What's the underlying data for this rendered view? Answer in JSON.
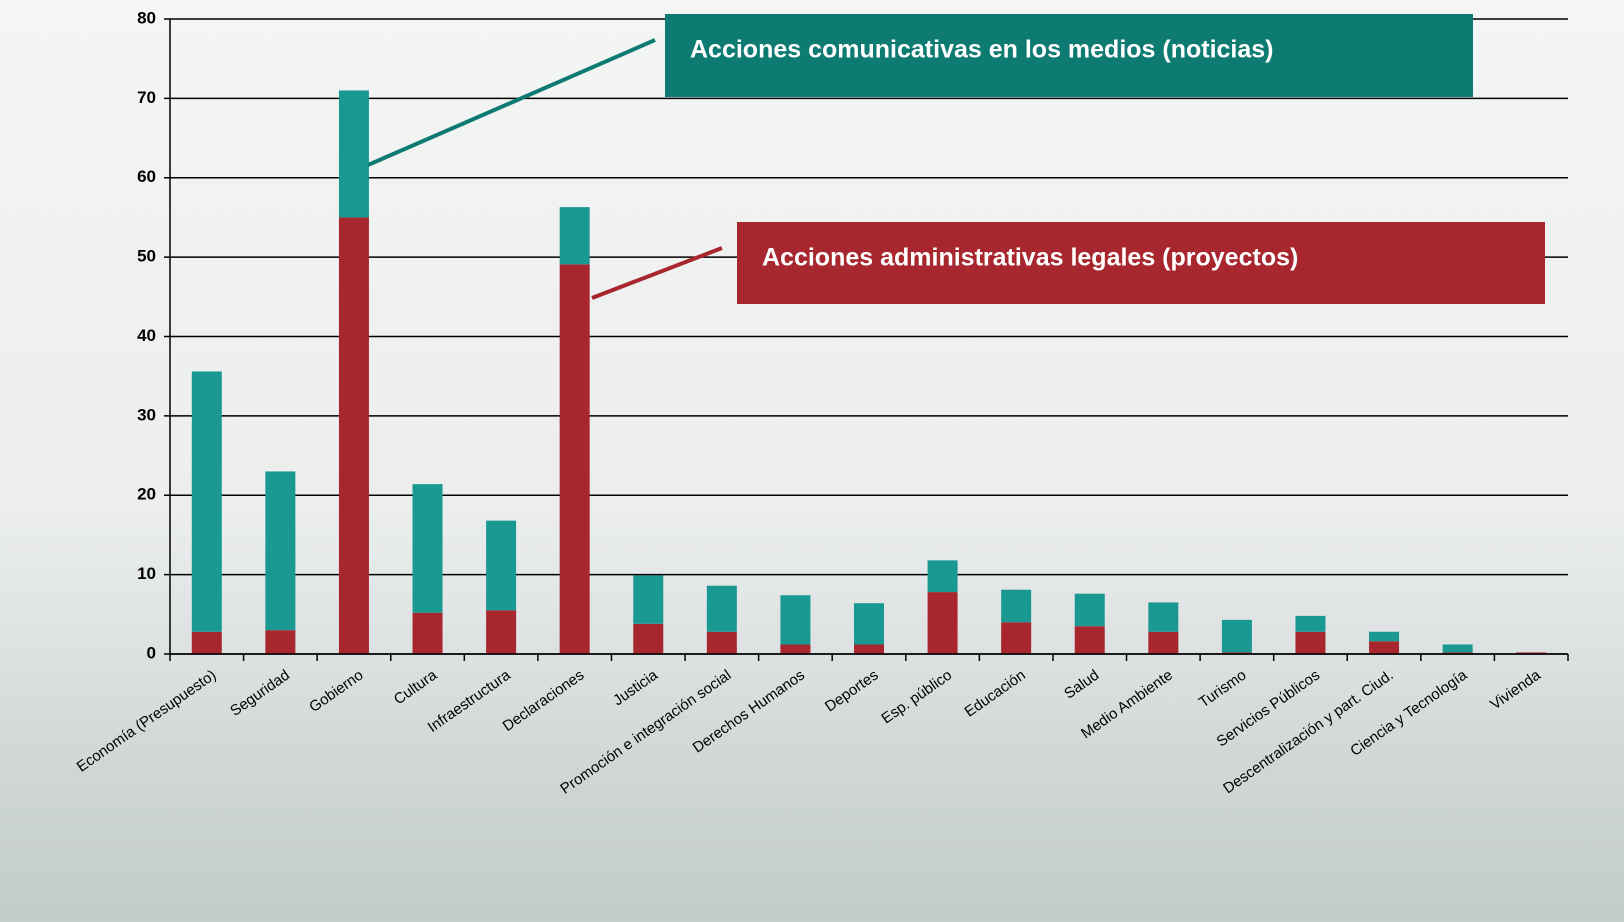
{
  "chart_data": {
    "type": "stacked_bar",
    "categories": [
      "Economía (Presupuesto)",
      "Seguridad",
      "Gobierno",
      "Cultura",
      "Infraestructura",
      "Declaraciones",
      "Justicia",
      "Promoción e integración social",
      "Derechos Humanos",
      "Deportes",
      "Esp. público",
      "Educación",
      "Salud",
      "Medio Ambiente",
      "Turismo",
      "Servicios Públicos",
      "Descentralización y part. Ciud.",
      "Ciencia y Tecnología",
      "Vivienda"
    ],
    "series": [
      {
        "name": "Acciones administrativas legales (proyectos)",
        "color": "#a8272f",
        "values": [
          2.8,
          3.0,
          55,
          5.2,
          5.5,
          49.1,
          3.8,
          2.8,
          1.2,
          1.2,
          7.8,
          4.0,
          3.5,
          2.8,
          0.2,
          2.8,
          1.6,
          0.2,
          0.2
        ]
      },
      {
        "name": "Acciones comunicativas en los medios (noticias)",
        "color": "#1a9892",
        "values": [
          32.8,
          20.0,
          16,
          16.2,
          11.3,
          7.2,
          6.1,
          5.8,
          6.2,
          5.2,
          4.0,
          4.1,
          4.1,
          3.7,
          4.1,
          2.0,
          1.2,
          1.0,
          0
        ]
      }
    ],
    "ylim": [
      0,
      80
    ],
    "yticks": [
      0,
      10,
      20,
      30,
      40,
      50,
      60,
      70,
      80
    ],
    "grid": true
  }
}
